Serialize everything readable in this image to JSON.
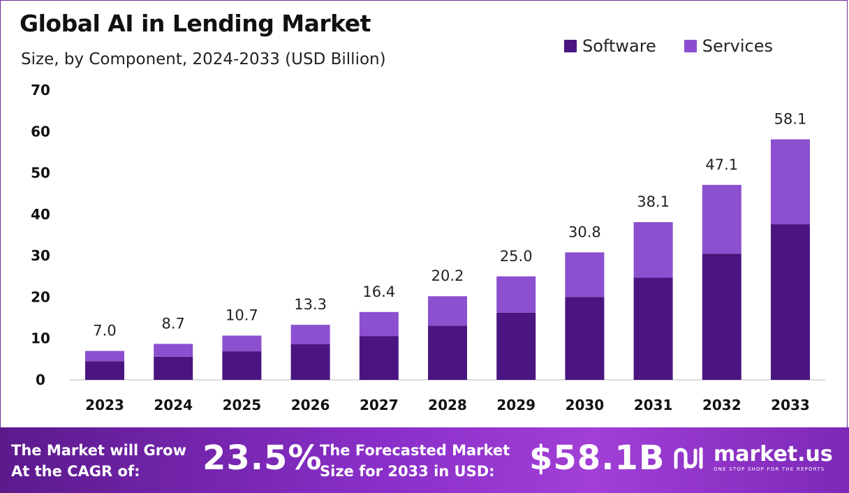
{
  "title": "Global AI in Lending Market",
  "subtitle": "Size, by Component, 2024-2033 (USD Billion)",
  "colors": {
    "software": "#4b1581",
    "services": "#8c4fcf",
    "accent": "#6a2c91"
  },
  "banner": {
    "text1": "The Market will Grow At the CAGR of:",
    "cagr": "23.5%",
    "text2": "The Forecasted Market Size for 2033 in USD:",
    "size": "$58.1B",
    "logo_name": "market.us",
    "logo_tagline": "ONE STOP SHOP FOR THE REPORTS",
    "logo_icon": "market-us-logo-icon"
  },
  "chart_data": {
    "type": "bar",
    "stacked": true,
    "categories": [
      "2023",
      "2024",
      "2025",
      "2026",
      "2027",
      "2028",
      "2029",
      "2030",
      "2031",
      "2032",
      "2033"
    ],
    "series": [
      {
        "name": "Software",
        "values": [
          4.5,
          5.6,
          6.9,
          8.6,
          10.6,
          13.1,
          16.2,
          20.0,
          24.7,
          30.5,
          37.6
        ]
      },
      {
        "name": "Services",
        "values": [
          2.5,
          3.1,
          3.8,
          4.7,
          5.8,
          7.1,
          8.8,
          10.8,
          13.4,
          16.6,
          20.5
        ]
      }
    ],
    "totals": [
      "7.0",
      "8.7",
      "10.7",
      "13.3",
      "16.4",
      "20.2",
      "25.0",
      "30.8",
      "38.1",
      "47.1",
      "58.1"
    ],
    "yticks": [
      "0",
      "10",
      "20",
      "30",
      "40",
      "50",
      "60",
      "70"
    ],
    "ylim": [
      0,
      70
    ],
    "legend_position": "top-right",
    "grid": false
  }
}
